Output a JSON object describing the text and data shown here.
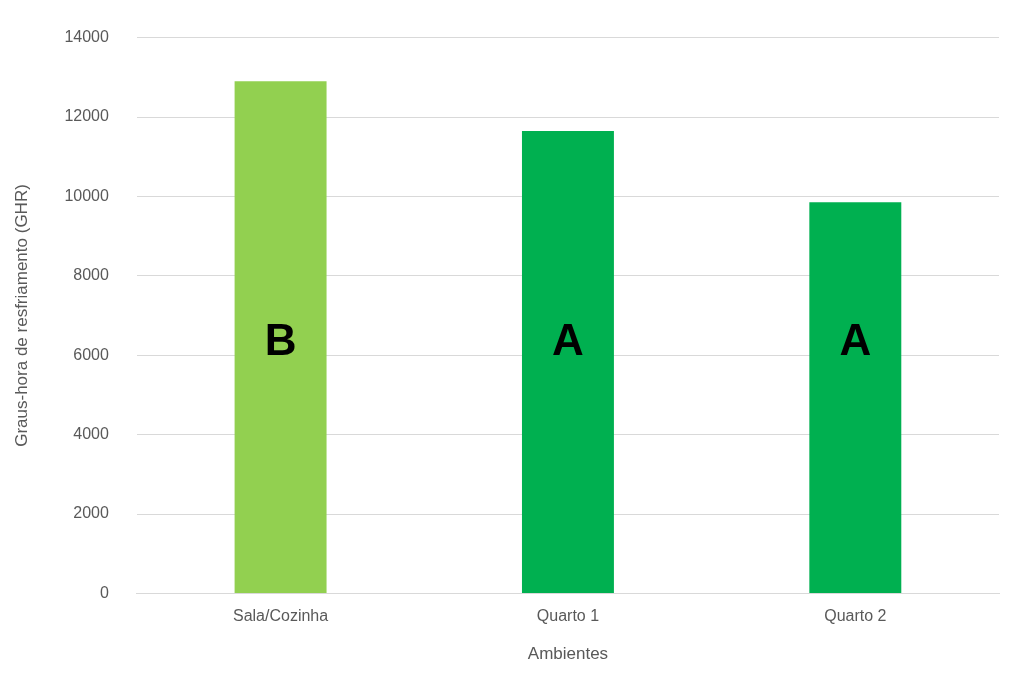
{
  "chart_data": {
    "type": "bar",
    "xlabel": "Ambientes",
    "ylabel": "Graus-hora de resfriamento (GHR)",
    "categories": [
      "Sala/Cozinha",
      "Quarto 1",
      "Quarto 2"
    ],
    "values": [
      12900,
      11650,
      9850
    ],
    "colors": [
      "#92d050",
      "#00b050",
      "#00b050"
    ],
    "ylim": [
      0,
      14000
    ],
    "yticks": [
      0,
      2000,
      4000,
      6000,
      8000,
      10000,
      12000,
      14000
    ],
    "grid": "y",
    "legend": false,
    "annotations": [
      "B",
      "A",
      "A"
    ]
  }
}
